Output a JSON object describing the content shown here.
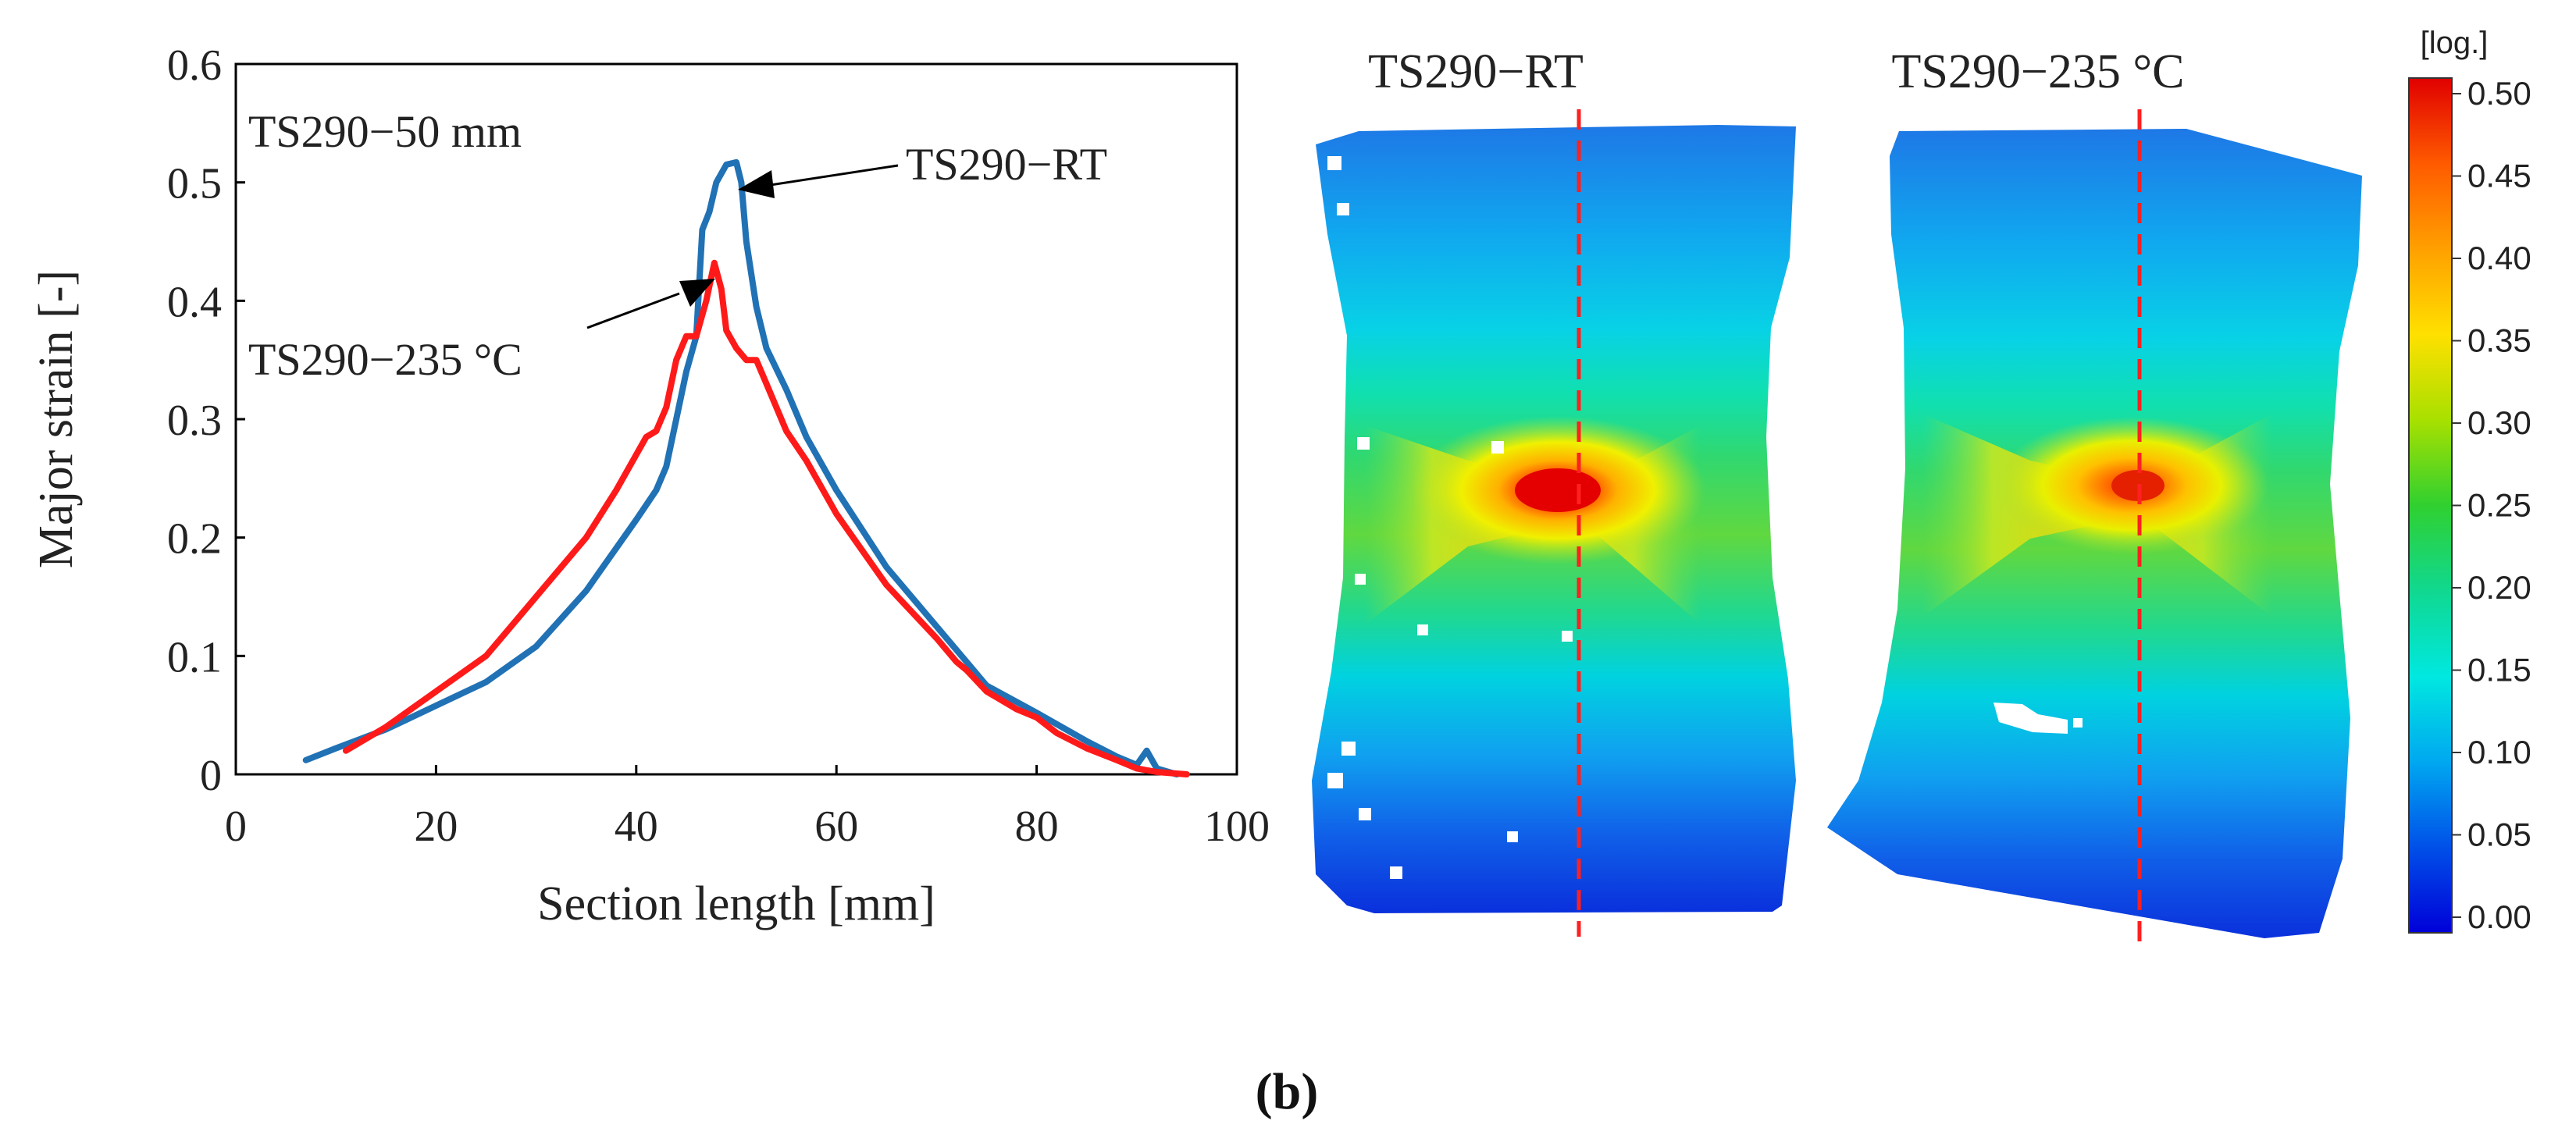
{
  "figure_label": "(b)",
  "chart_data": {
    "type": "line",
    "title": "",
    "xlabel": "Section length [mm]",
    "ylabel": "Major strain [-]",
    "xlim": [
      0,
      100
    ],
    "ylim": [
      0,
      0.6
    ],
    "x_ticks": [
      "0",
      "20",
      "40",
      "60",
      "80",
      "100"
    ],
    "y_ticks": [
      "0",
      "0.1",
      "0.2",
      "0.3",
      "0.4",
      "0.5",
      "0.6"
    ],
    "grid": false,
    "annotations": [
      {
        "text": "TS290−50 mm"
      },
      {
        "text": "TS290−RT"
      },
      {
        "text": "TS290−235 °C"
      }
    ],
    "series": [
      {
        "name": "TS290−RT",
        "color": "#2171b5",
        "points": [
          [
            7,
            0.012
          ],
          [
            10,
            0.022
          ],
          [
            15,
            0.038
          ],
          [
            20,
            0.058
          ],
          [
            25,
            0.078
          ],
          [
            30,
            0.108
          ],
          [
            35,
            0.155
          ],
          [
            40,
            0.215
          ],
          [
            42,
            0.24
          ],
          [
            43,
            0.26
          ],
          [
            44,
            0.3
          ],
          [
            45,
            0.34
          ],
          [
            46,
            0.37
          ],
          [
            46.6,
            0.46
          ],
          [
            47.3,
            0.475
          ],
          [
            48,
            0.5
          ],
          [
            49,
            0.515
          ],
          [
            50,
            0.517
          ],
          [
            50.5,
            0.5
          ],
          [
            51,
            0.45
          ],
          [
            52,
            0.395
          ],
          [
            53,
            0.36
          ],
          [
            55,
            0.325
          ],
          [
            57,
            0.285
          ],
          [
            60,
            0.24
          ],
          [
            65,
            0.175
          ],
          [
            70,
            0.125
          ],
          [
            73,
            0.095
          ],
          [
            75,
            0.075
          ],
          [
            80,
            0.052
          ],
          [
            85,
            0.028
          ],
          [
            88,
            0.015
          ],
          [
            90,
            0.008
          ],
          [
            91,
            0.02
          ],
          [
            92,
            0.005
          ],
          [
            94,
            0.0
          ]
        ]
      },
      {
        "name": "TS290−235 °C",
        "color": "#ff1a1a",
        "points": [
          [
            11,
            0.02
          ],
          [
            15,
            0.04
          ],
          [
            20,
            0.07
          ],
          [
            25,
            0.1
          ],
          [
            30,
            0.15
          ],
          [
            35,
            0.2
          ],
          [
            38,
            0.24
          ],
          [
            41,
            0.285
          ],
          [
            42,
            0.29
          ],
          [
            43,
            0.31
          ],
          [
            44,
            0.35
          ],
          [
            45,
            0.37
          ],
          [
            46,
            0.37
          ],
          [
            47,
            0.4
          ],
          [
            47.8,
            0.432
          ],
          [
            48.5,
            0.41
          ],
          [
            49,
            0.375
          ],
          [
            50,
            0.36
          ],
          [
            51,
            0.35
          ],
          [
            52,
            0.35
          ],
          [
            53,
            0.33
          ],
          [
            55,
            0.29
          ],
          [
            57,
            0.265
          ],
          [
            60,
            0.22
          ],
          [
            65,
            0.16
          ],
          [
            70,
            0.115
          ],
          [
            72,
            0.095
          ],
          [
            73,
            0.088
          ],
          [
            75,
            0.07
          ],
          [
            78,
            0.055
          ],
          [
            80,
            0.048
          ],
          [
            82,
            0.035
          ],
          [
            85,
            0.022
          ],
          [
            88,
            0.012
          ],
          [
            90,
            0.005
          ],
          [
            92,
            0.002
          ],
          [
            95,
            0.0
          ]
        ]
      }
    ]
  },
  "contour_maps": [
    {
      "name": "rt",
      "title": "TS290−RT"
    },
    {
      "name": "235c",
      "title": "TS290−235 °C"
    }
  ],
  "colorbar": {
    "unit_label": "[log.]",
    "ticks": [
      "0.50",
      "0.45",
      "0.40",
      "0.35",
      "0.30",
      "0.25",
      "0.20",
      "0.15",
      "0.10",
      "0.05",
      "0.00"
    ],
    "range": [
      0.0,
      0.5
    ]
  }
}
